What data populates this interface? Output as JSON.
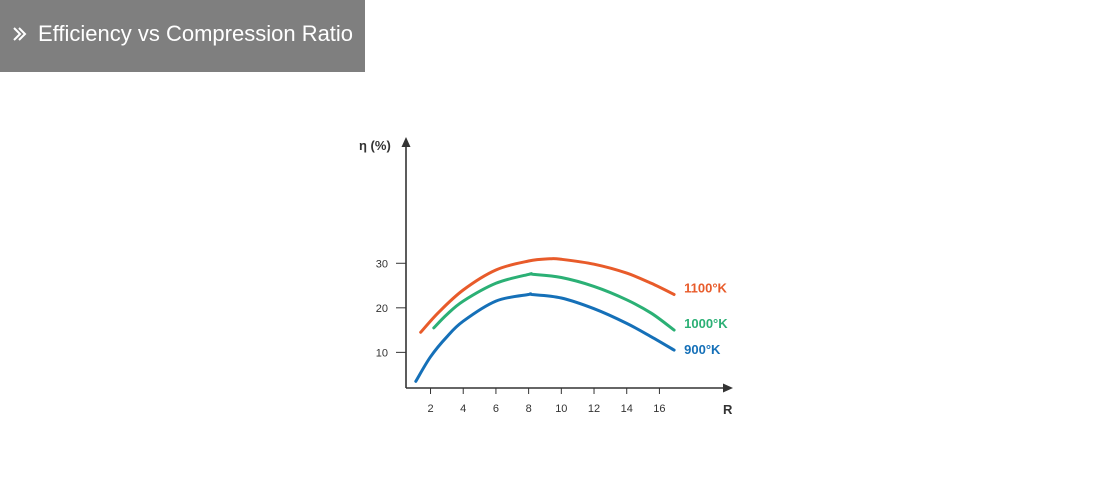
{
  "header": {
    "title": "Efficiency vs Compression Ratio",
    "icon": "double-chevron-right-icon",
    "background": "#7f7f7f"
  },
  "chart_data": {
    "type": "line",
    "title": "",
    "xlabel": "R",
    "ylabel": "η (%)",
    "x_ticks": [
      2,
      4,
      6,
      8,
      10,
      12,
      14,
      16
    ],
    "y_ticks": [
      10,
      20,
      30
    ],
    "xlim": [
      0.5,
      20.5
    ],
    "ylim": [
      2,
      57
    ],
    "grid": false,
    "legend": "inline-right",
    "series": [
      {
        "name": "1100°K",
        "color": "#e85b2a",
        "points": [
          [
            1.4,
            14.5
          ],
          [
            2.5,
            19
          ],
          [
            4,
            24
          ],
          [
            6,
            28.5
          ],
          [
            8,
            30.5
          ],
          [
            9.3,
            31
          ],
          [
            10,
            30.9
          ],
          [
            12,
            29.8
          ],
          [
            14,
            27.8
          ],
          [
            15.5,
            25.5
          ],
          [
            16.9,
            23
          ]
        ]
      },
      {
        "name": "1000°K",
        "color": "#2bb075",
        "points": [
          [
            2.2,
            15.5
          ],
          [
            3,
            18.5
          ],
          [
            4,
            21.5
          ],
          [
            6,
            25.5
          ],
          [
            8,
            27.5
          ],
          [
            8.3,
            27.5
          ],
          [
            10,
            26.8
          ],
          [
            12,
            24.8
          ],
          [
            14,
            21.8
          ],
          [
            15.5,
            18.8
          ],
          [
            16.9,
            15
          ]
        ]
      },
      {
        "name": "900°K",
        "color": "#1570b8",
        "points": [
          [
            1.1,
            3.5
          ],
          [
            2,
            9
          ],
          [
            3,
            13.5
          ],
          [
            4,
            17
          ],
          [
            6,
            21.5
          ],
          [
            8,
            23
          ],
          [
            8.2,
            23
          ],
          [
            10,
            22.2
          ],
          [
            12,
            19.8
          ],
          [
            14,
            16.5
          ],
          [
            15.5,
            13.5
          ],
          [
            16.9,
            10.5
          ]
        ]
      }
    ]
  }
}
